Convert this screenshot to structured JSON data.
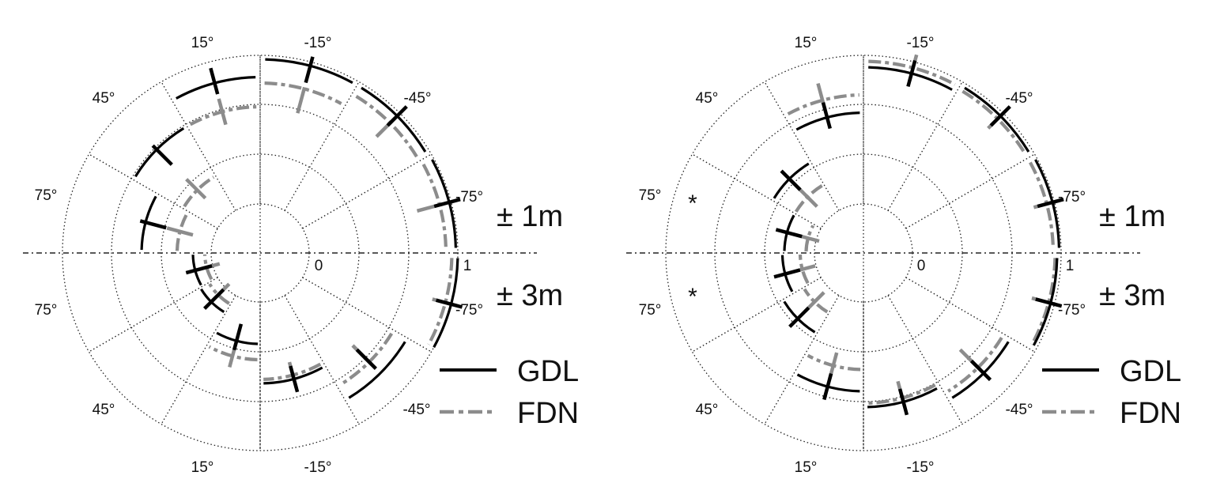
{
  "chart_data": {
    "type": "polar-arc",
    "description_units": "azimuth in degrees; radial axis 0 to 1",
    "radial_ticks": [
      "0",
      "1"
    ],
    "upper_half_label": "± 1m",
    "lower_half_label": "± 3m",
    "left_side_angle_labels_top": [
      "15°",
      "45°",
      "75°"
    ],
    "left_side_angle_labels_bottom": [
      "75°",
      "45°",
      "15°"
    ],
    "right_side_angle_labels_top": [
      "-15°",
      "-45°",
      "-75°"
    ],
    "right_side_angle_labels_bottom": [
      "-75°",
      "-45°",
      "-15°"
    ],
    "legend": [
      {
        "name": "GDL",
        "style": "solid",
        "color": "#000000"
      },
      {
        "name": "FDN",
        "style": "dash-dot",
        "color": "#8c8c8c"
      }
    ],
    "panels": [
      {
        "id": "left-panel",
        "significance_marks": [],
        "sectors": [
          {
            "half": "top",
            "azimuth": "-15°",
            "GDL": {
              "value": 0.98,
              "tick": 0.96
            },
            "FDN": {
              "value": 0.86,
              "tick": 0.8
            }
          },
          {
            "half": "top",
            "azimuth": "-45°",
            "GDL": {
              "value": 0.98,
              "tick": 0.98
            },
            "FDN": {
              "value": 0.93,
              "tick": 0.9
            }
          },
          {
            "half": "top",
            "azimuth": "-75°",
            "GDL": {
              "value": 0.99,
              "tick": 0.98
            },
            "FDN": {
              "value": 0.94,
              "tick": 0.89
            }
          },
          {
            "half": "top",
            "azimuth": "15°",
            "GDL": {
              "value": 0.89,
              "tick": 0.9
            },
            "FDN": {
              "value": 0.74,
              "tick": 0.74
            }
          },
          {
            "half": "top",
            "azimuth": "45°",
            "GDL": {
              "value": 0.74,
              "tick": 0.7
            },
            "FDN": {
              "value": 0.45,
              "tick": 0.46
            }
          },
          {
            "half": "top",
            "azimuth": "75°",
            "GDL": {
              "value": 0.6,
              "tick": 0.56
            },
            "FDN": {
              "value": 0.42,
              "tick": 0.42
            }
          },
          {
            "half": "bottom",
            "azimuth": "-75°",
            "GDL": {
              "value": 1.0,
              "tick": 0.99
            },
            "FDN": {
              "value": 0.97,
              "tick": 0.97
            }
          },
          {
            "half": "bottom",
            "azimuth": "-45°",
            "GDL": {
              "value": 0.86,
              "tick": 0.76
            },
            "FDN": {
              "value": 0.78,
              "tick": 0.73
            }
          },
          {
            "half": "bottom",
            "azimuth": "-15°",
            "GDL": {
              "value": 0.66,
              "tick": 0.66
            },
            "FDN": {
              "value": 0.64,
              "tick": 0.64
            }
          },
          {
            "half": "bottom",
            "azimuth": "15°",
            "GDL": {
              "value": 0.46,
              "tick": 0.44
            },
            "FDN": {
              "value": 0.54,
              "tick": 0.53
            }
          },
          {
            "half": "bottom",
            "azimuth": "45°",
            "GDL": {
              "value": 0.35,
              "tick": 0.33
            },
            "FDN": {
              "value": 0.3,
              "tick": 0.29
            }
          },
          {
            "half": "bottom",
            "azimuth": "75°",
            "GDL": {
              "value": 0.34,
              "tick": 0.32
            },
            "FDN": {
              "value": 0.28,
              "tick": 0.28
            }
          }
        ]
      },
      {
        "id": "right-panel",
        "significance_marks": [
          {
            "half": "top",
            "azimuth": "75°",
            "label": "*"
          },
          {
            "half": "bottom",
            "azimuth": "75°",
            "label": "*"
          }
        ],
        "sectors": [
          {
            "half": "top",
            "azimuth": "-15°",
            "GDL": {
              "value": 0.94,
              "tick": 0.94
            },
            "FDN": {
              "value": 0.97,
              "tick": 0.97
            }
          },
          {
            "half": "top",
            "azimuth": "-45°",
            "GDL": {
              "value": 0.98,
              "tick": 0.98
            },
            "FDN": {
              "value": 0.96,
              "tick": 0.96
            }
          },
          {
            "half": "top",
            "azimuth": "-75°",
            "GDL": {
              "value": 0.99,
              "tick": 0.98
            },
            "FDN": {
              "value": 0.96,
              "tick": 0.96
            }
          },
          {
            "half": "top",
            "azimuth": "15°",
            "GDL": {
              "value": 0.71,
              "tick": 0.72
            },
            "FDN": {
              "value": 0.8,
              "tick": 0.82
            }
          },
          {
            "half": "top",
            "azimuth": "45°",
            "GDL": {
              "value": 0.53,
              "tick": 0.52
            },
            "FDN": {
              "value": 0.4,
              "tick": 0.4
            }
          },
          {
            "half": "top",
            "azimuth": "75°",
            "GDL": {
              "value": 0.4,
              "tick": 0.39
            },
            "FDN": {
              "value": 0.29,
              "tick": 0.3
            }
          },
          {
            "half": "bottom",
            "azimuth": "-75°",
            "GDL": {
              "value": 0.98,
              "tick": 0.97
            },
            "FDN": {
              "value": 0.97,
              "tick": 0.95
            }
          },
          {
            "half": "bottom",
            "azimuth": "-45°",
            "GDL": {
              "value": 0.86,
              "tick": 0.84
            },
            "FDN": {
              "value": 0.82,
              "tick": 0.76
            }
          },
          {
            "half": "bottom",
            "azimuth": "-15°",
            "GDL": {
              "value": 0.78,
              "tick": 0.78
            },
            "FDN": {
              "value": 0.76,
              "tick": 0.74
            }
          },
          {
            "half": "bottom",
            "azimuth": "15°",
            "GDL": {
              "value": 0.7,
              "tick": 0.7
            },
            "FDN": {
              "value": 0.59,
              "tick": 0.59
            }
          },
          {
            "half": "bottom",
            "azimuth": "45°",
            "GDL": {
              "value": 0.47,
              "tick": 0.46
            },
            "FDN": {
              "value": 0.35,
              "tick": 0.35
            }
          },
          {
            "half": "bottom",
            "azimuth": "75°",
            "GDL": {
              "value": 0.41,
              "tick": 0.4
            },
            "FDN": {
              "value": 0.32,
              "tick": 0.32
            }
          }
        ]
      }
    ]
  }
}
